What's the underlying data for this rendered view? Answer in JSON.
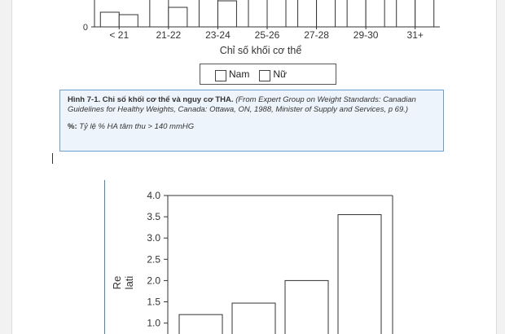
{
  "top_figure": {
    "xlabel": "Chỉ số khối cơ thể",
    "legend": [
      "Nam",
      "Nữ"
    ]
  },
  "caption": {
    "title": "Hình 7-1. Chỉ số khối cơ thể và nguy cơ THA.",
    "source": "(From Expert Group on Weight Standards: Canadian Guidelines for Healthy Weights, Canada: Ottawa, ON, 1988, Minister of Supply and Services, p 69.)",
    "note_label": "%:",
    "note_text": "Tỷ lệ % HA tâm thu > 140 mmHG"
  },
  "bottom_figure": {
    "ylabel_line1": "Re",
    "ylabel_line2": "lati"
  },
  "chart_data": [
    {
      "type": "bar",
      "categories": [
        "< 21",
        "21-22",
        "23-24",
        "25-26",
        "27-28",
        "29-30",
        "31+"
      ],
      "series": [
        {
          "name": "Nam",
          "values": [
            1.8,
            3.6,
            null,
            null,
            null,
            null,
            null
          ]
        },
        {
          "name": "Nữ",
          "values": [
            1.5,
            2.4,
            3.2,
            null,
            null,
            null,
            null
          ]
        }
      ],
      "xlabel": "Chỉ số khối cơ thể",
      "ylabel": "",
      "y_tick_labels": [
        "0"
      ],
      "ylim": [
        0,
        6
      ],
      "legend": "bottom-center"
    },
    {
      "type": "bar",
      "categories": [
        "",
        "",
        "",
        ""
      ],
      "values": [
        1.2,
        1.47,
        2.0,
        3.55
      ],
      "xlabel": "",
      "ylabel": "Re lati",
      "y_ticks": [
        1.0,
        1.5,
        2.0,
        2.5,
        3.0,
        3.5,
        4.0
      ],
      "y_tick_labels": [
        "1.0",
        "1.5",
        "2.0",
        "2.5",
        "3.0",
        "3.5",
        "4.0"
      ],
      "ylim": [
        0.7,
        4.0
      ],
      "grid": false
    }
  ]
}
